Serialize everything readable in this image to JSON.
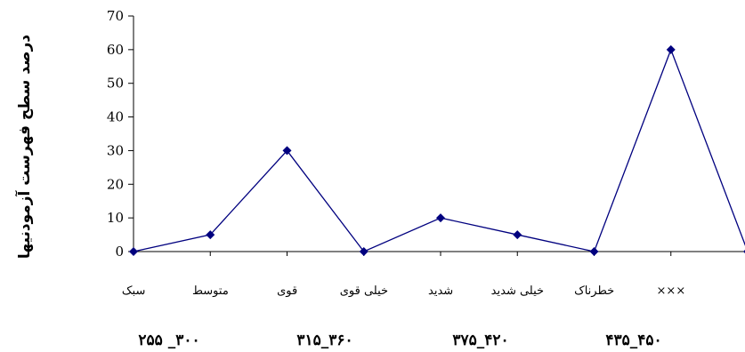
{
  "chart_data": {
    "type": "line",
    "title": "",
    "ylabel": "درصد سطح فهرست آزمودنیها",
    "xlabel": "",
    "ylim": [
      0,
      70
    ],
    "yticks": [
      "0",
      "10",
      "20",
      "30",
      "40",
      "50",
      "60",
      "70"
    ],
    "categories": [
      "سبک",
      "متوسط",
      "قوی",
      "خیلی قوی",
      "شدید",
      "خیلی شدید",
      "خطرناک",
      "×××",
      ""
    ],
    "series": [
      {
        "values": [
          0,
          5,
          30,
          0,
          10,
          5,
          0,
          60,
          0
        ],
        "color": "#00007f"
      }
    ],
    "range_labels": [
      "۲۵۵ _۳۰۰",
      "۳۱۵_۳۶۰",
      "۳۷۵_۴۲۰",
      "۴۳۵_۴۵۰"
    ],
    "grid": false,
    "legend": "none"
  }
}
